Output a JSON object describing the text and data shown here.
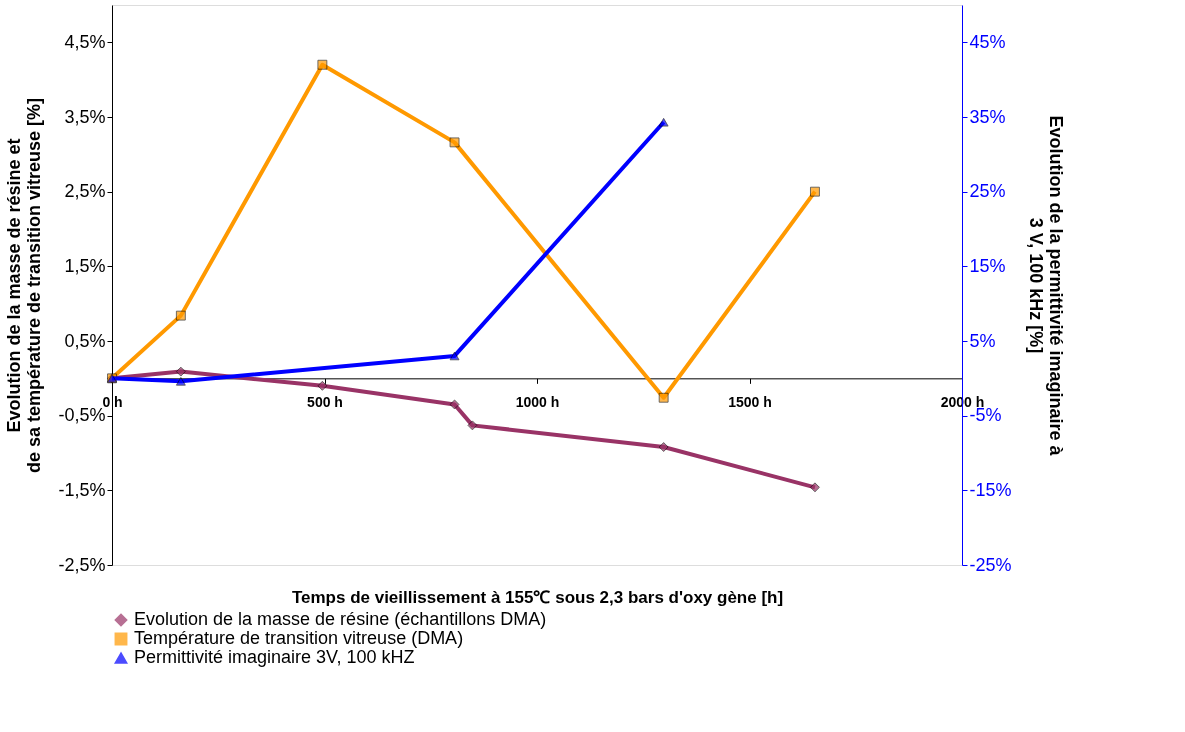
{
  "chart_data": {
    "type": "line",
    "xlabel": "Temps de vieillissement à 155℃ sous 2,3 bars d'oxy gène [h]",
    "ylabel": "Evolution de la masse de résine et de sa température de transition vitreuse [%]",
    "y2label": "Evolution de la permittivité imaginaire à 3 V, 100 kHz [%]",
    "xlim": [
      0,
      2000
    ],
    "xticks": [
      {
        "value": 0,
        "label": "0 h"
      },
      {
        "value": 500,
        "label": "500 h"
      },
      {
        "value": 1000,
        "label": "1000 h"
      },
      {
        "value": 1500,
        "label": "1500 h"
      },
      {
        "value": 2000,
        "label": "2000 h"
      }
    ],
    "ylim": [
      -2.5,
      5
    ],
    "yticks": [
      {
        "value": -2.5,
        "label": "-2,5%"
      },
      {
        "value": -1.5,
        "label": "-1,5%"
      },
      {
        "value": -0.5,
        "label": "-0,5%"
      },
      {
        "value": 0.5,
        "label": "0,5%"
      },
      {
        "value": 1.5,
        "label": "1,5%"
      },
      {
        "value": 2.5,
        "label": "2,5%"
      },
      {
        "value": 3.5,
        "label": "3,5%"
      },
      {
        "value": 4.5,
        "label": "4,5%"
      }
    ],
    "y2lim": [
      -25,
      50
    ],
    "y2ticks": [
      {
        "value": -25,
        "label": "-25%"
      },
      {
        "value": -15,
        "label": "-15%"
      },
      {
        "value": -5,
        "label": "-5%"
      },
      {
        "value": 5,
        "label": "5%"
      },
      {
        "value": 15,
        "label": "15%"
      },
      {
        "value": 25,
        "label": "25%"
      },
      {
        "value": 35,
        "label": "35%"
      },
      {
        "value": 45,
        "label": "45%"
      }
    ],
    "grid": false,
    "legend": "bottom",
    "line_style": "solid",
    "series": [
      {
        "name": "Evolution de la masse de résine (échantillons DMA)",
        "color": "#993366",
        "marker": "diamond",
        "x": [
          0,
          162,
          495,
          806,
          848,
          1298,
          1654
        ],
        "values": [
          0,
          0.09,
          -0.1,
          -0.35,
          -0.63,
          -0.92,
          -1.46
        ]
      },
      {
        "name": "Température de transition vitreuse (DMA)",
        "color": "#ff9900",
        "marker": "square",
        "x": [
          0,
          162,
          495,
          806,
          1298,
          1654
        ],
        "values": [
          0,
          0.84,
          4.2,
          3.16,
          -0.26,
          2.5
        ]
      },
      {
        "name": "Permittivité imaginaire 3V, 100 kHZ",
        "color": "#0000ff",
        "marker": "triangle",
        "axis": "y2",
        "x": [
          0,
          162,
          806,
          1298
        ],
        "values": [
          0,
          -0.4,
          3,
          34.3
        ]
      }
    ]
  }
}
